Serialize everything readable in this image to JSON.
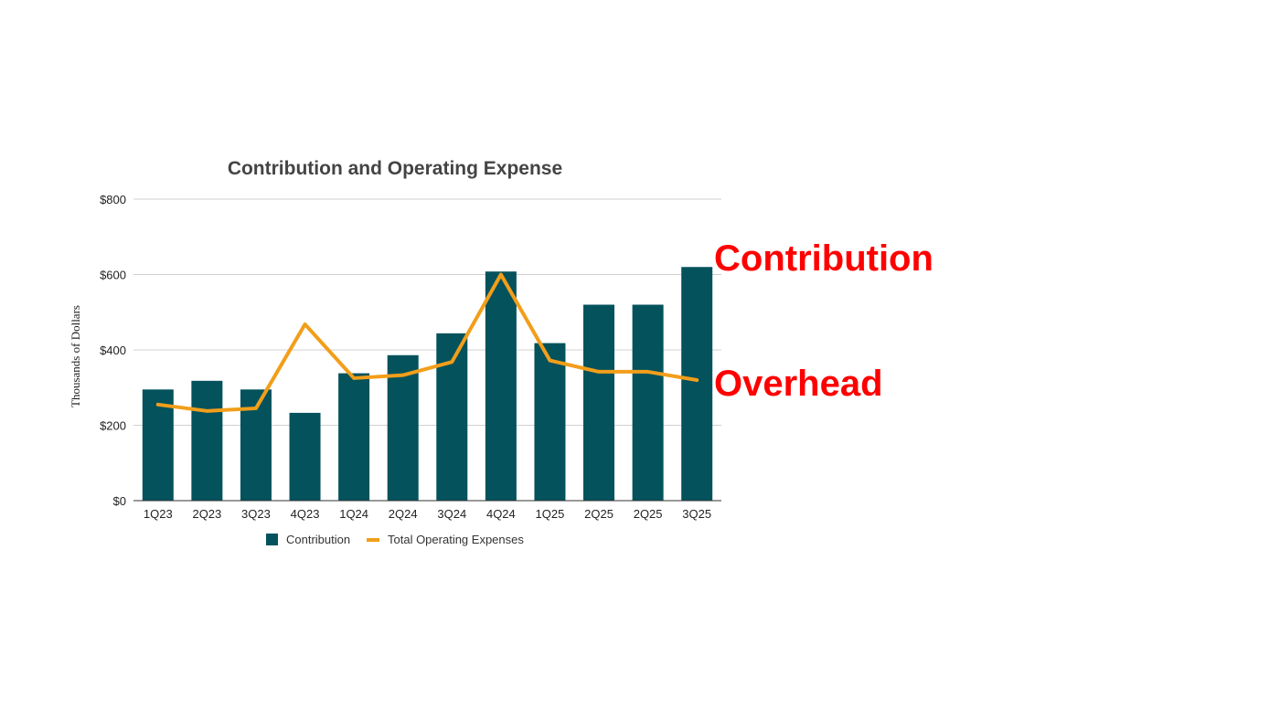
{
  "chart_data": {
    "type": "bar",
    "title": "Contribution and Operating Expense",
    "ylabel": "Thousands of Dollars",
    "xlabel": "",
    "categories": [
      "1Q23",
      "2Q23",
      "3Q23",
      "4Q23",
      "1Q24",
      "2Q24",
      "3Q24",
      "4Q24",
      "1Q25",
      "2Q25",
      "2Q25",
      "3Q25"
    ],
    "ylim": [
      0,
      800
    ],
    "yticks": [
      0,
      200,
      400,
      600,
      800
    ],
    "ytick_labels": [
      "$0",
      "$200",
      "$400",
      "$600",
      "$800"
    ],
    "grid": true,
    "legend_position": "bottom",
    "series": [
      {
        "name": "Contribution",
        "type": "bar",
        "color": "#03525c",
        "values": [
          295,
          318,
          295,
          233,
          338,
          386,
          444,
          608,
          418,
          520,
          520,
          620
        ]
      },
      {
        "name": "Total Operating Expenses",
        "type": "line",
        "color": "#f29e1a",
        "values": [
          255,
          238,
          245,
          468,
          325,
          333,
          368,
          600,
          372,
          342,
          342,
          320
        ]
      }
    ],
    "annotations": [
      {
        "text": "Contribution",
        "color": "#ff0000"
      },
      {
        "text": "Overhead",
        "color": "#ff0000"
      }
    ]
  }
}
